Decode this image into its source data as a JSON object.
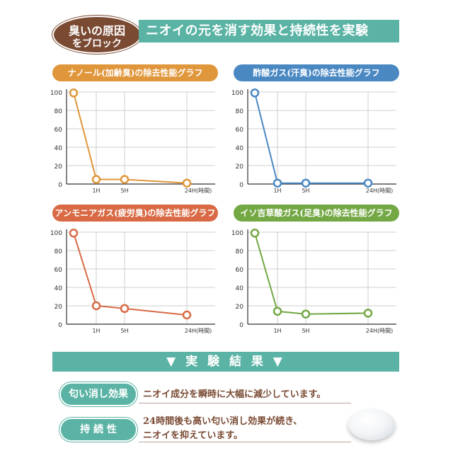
{
  "header": {
    "badge_line1": "臭いの原因",
    "badge_line2": "をブロック",
    "banner": "ニオイの元を消す効果と持続性を実験"
  },
  "colors": {
    "teal": "#5ab3a4",
    "brown": "#7a4a33",
    "orange": "#e0963a",
    "blue": "#4a88c2",
    "red": "#d96a45",
    "green": "#73a844"
  },
  "chart_data": [
    {
      "type": "line",
      "title": "ナノール(加齢臭)の除去性能グラフ",
      "color": "#e0963a",
      "x": [
        0,
        1,
        5,
        24
      ],
      "values": [
        99,
        5,
        5,
        1
      ],
      "x_ticks": [
        "1H",
        "5H",
        "24H(時間)"
      ],
      "y_ticks": [
        "0",
        "20",
        "40",
        "60",
        "80",
        "100"
      ],
      "ylim": [
        0,
        100
      ]
    },
    {
      "type": "line",
      "title": "酢酸ガス(汗臭)の除去性能グラフ",
      "color": "#4a88c2",
      "x": [
        0,
        1,
        5,
        24
      ],
      "values": [
        99,
        1,
        1,
        1
      ],
      "x_ticks": [
        "1H",
        "5H",
        "24H(時間)"
      ],
      "y_ticks": [
        "0",
        "20",
        "40",
        "60",
        "80",
        "100"
      ],
      "ylim": [
        0,
        100
      ]
    },
    {
      "type": "line",
      "title": "アンモニアガス(疲労臭)の除去性能グラフ",
      "color": "#d96a45",
      "x": [
        0,
        1,
        5,
        24
      ],
      "values": [
        99,
        20,
        17,
        10
      ],
      "x_ticks": [
        "1H",
        "5H",
        "24H(時間)"
      ],
      "y_ticks": [
        "0",
        "20",
        "40",
        "60",
        "80",
        "100"
      ],
      "ylim": [
        0,
        100
      ]
    },
    {
      "type": "line",
      "title": "イソ吉草酸ガス(足臭)の除去性能グラフ",
      "color": "#73a844",
      "x": [
        0,
        1,
        5,
        24
      ],
      "values": [
        99,
        14,
        11,
        12
      ],
      "x_ticks": [
        "1H",
        "5H",
        "24H(時間)"
      ],
      "y_ticks": [
        "0",
        "20",
        "40",
        "60",
        "80",
        "100"
      ],
      "ylim": [
        0,
        100
      ]
    }
  ],
  "results": {
    "title": "▼ 実 験 結 果 ▼",
    "items": [
      {
        "label": "匂い消し効果",
        "lines": [
          "ニオイ成分を瞬時に大幅に減少しています。"
        ]
      },
      {
        "label": "持 続 性",
        "lines": [
          "24時間後も高い匂い消し効果が続き、",
          "ニオイを抑えています。"
        ]
      }
    ]
  }
}
